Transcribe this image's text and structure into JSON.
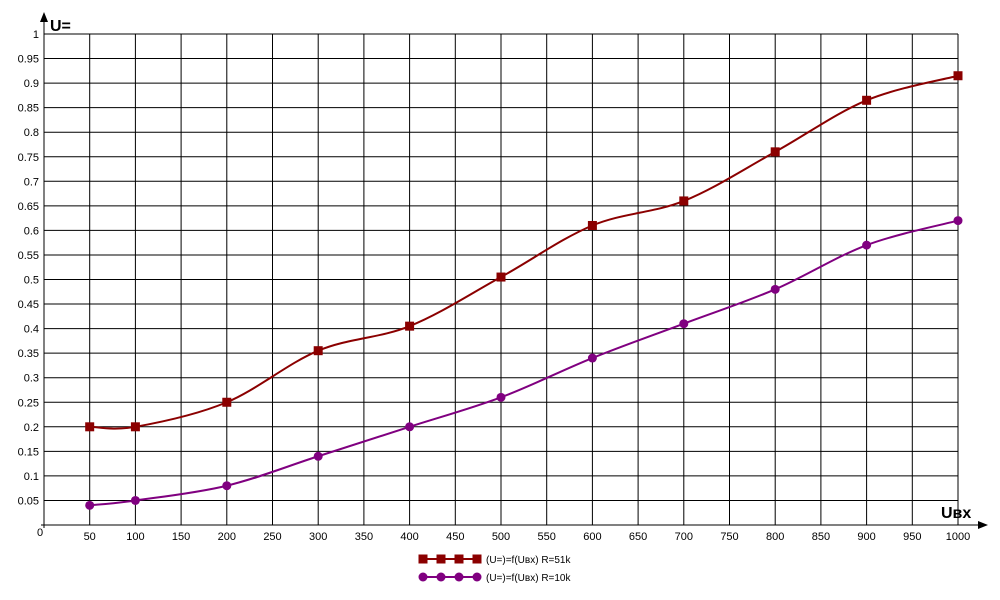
{
  "chart_data": {
    "type": "line",
    "ylabel": "U=",
    "xlabel": "Uвх",
    "origin_label": "0",
    "xlim": [
      0,
      1000
    ],
    "ylim": [
      0,
      1
    ],
    "x_ticks": [
      50,
      100,
      150,
      200,
      250,
      300,
      350,
      400,
      450,
      500,
      550,
      600,
      650,
      700,
      750,
      800,
      850,
      900,
      950,
      1000
    ],
    "y_ticks": [
      0.05,
      0.1,
      0.15,
      0.2,
      0.25,
      0.3,
      0.35,
      0.4,
      0.45,
      0.5,
      0.55,
      0.6,
      0.65,
      0.7,
      0.75,
      0.8,
      0.85,
      0.9,
      0.95,
      1
    ],
    "grid": true,
    "legend_position": "bottom-center",
    "x": [
      50,
      100,
      200,
      300,
      400,
      500,
      600,
      700,
      800,
      900,
      1000
    ],
    "series": [
      {
        "name": "(U=)=f(Uвх) R=51k",
        "color": "#8b0000",
        "marker": "square",
        "values": [
          0.2,
          0.2,
          0.25,
          0.355,
          0.405,
          0.505,
          0.61,
          0.66,
          0.76,
          0.865,
          0.915
        ]
      },
      {
        "name": "(U=)=f(Uвх) R=10k",
        "color": "#800080",
        "marker": "circle",
        "values": [
          0.04,
          0.05,
          0.08,
          0.14,
          0.2,
          0.26,
          0.34,
          0.41,
          0.48,
          0.57,
          0.62
        ]
      }
    ]
  }
}
